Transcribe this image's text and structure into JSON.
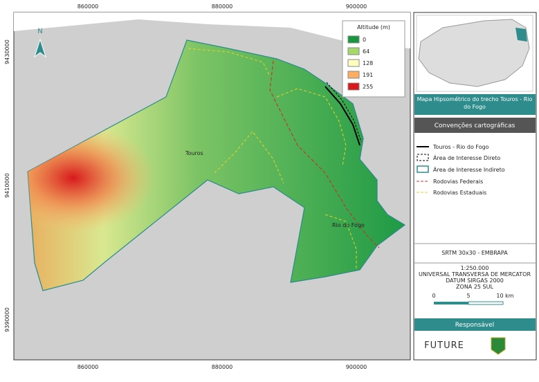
{
  "map": {
    "coords_top": [
      "860000",
      "880000",
      "900000"
    ],
    "coords_bottom": [
      "860000",
      "880000",
      "900000"
    ],
    "coords_left": [
      "9430000",
      "9410000",
      "9390000"
    ],
    "north": "N",
    "places": [
      "Touros",
      "Rio do Fogo"
    ],
    "legend": {
      "title": "Altitude (m)",
      "items": [
        {
          "label": "0",
          "color": "#1a9641"
        },
        {
          "label": "64",
          "color": "#a6d96a"
        },
        {
          "label": "128",
          "color": "#ffffbf"
        },
        {
          "label": "191",
          "color": "#fdae61"
        },
        {
          "label": "255",
          "color": "#d7191c"
        }
      ]
    }
  },
  "sidebar": {
    "title": "Mapa Hipsométrico do trecho Touros - Rio do Fogo",
    "conventions_title": "Convenções cartográficas",
    "conventions": [
      "Touros - Rio do Fogo",
      "Área de Interesse Direto",
      "Área de Interesse Indireto",
      "Rodovias Federais",
      "Rodovias Estaduais"
    ],
    "source": "SRTM 30x30 - EMBRAPA",
    "scale": "1:250.000",
    "projection": [
      "UNIVERSAL TRANSVERSA DE MERCATOR",
      "DATUM SIRGAS 2000",
      "ZONA 25 SUL"
    ],
    "scale_bar": [
      "0",
      "5",
      "10 km"
    ],
    "responsible_title": "Responsável",
    "logo": "FUTURE"
  }
}
